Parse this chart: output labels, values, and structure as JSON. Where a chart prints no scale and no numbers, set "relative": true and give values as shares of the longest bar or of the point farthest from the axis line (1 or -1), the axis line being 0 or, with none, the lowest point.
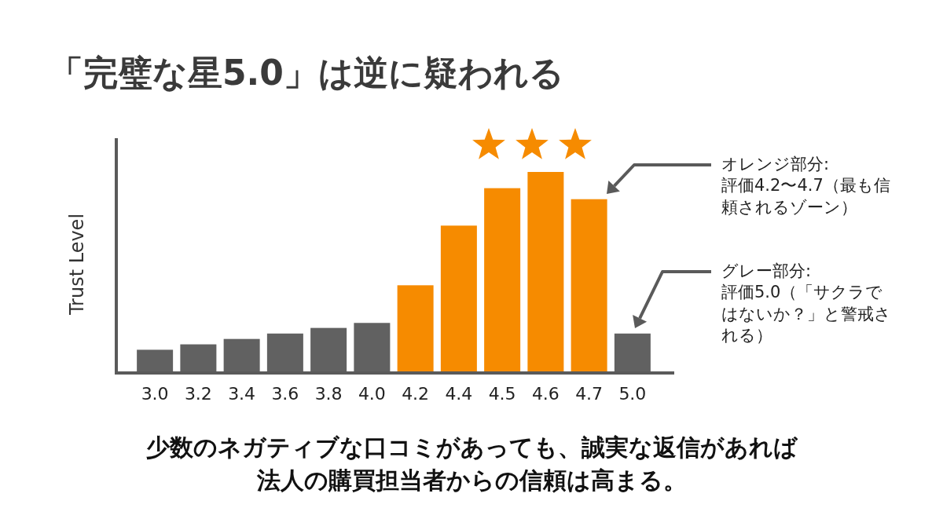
{
  "chart_data": {
    "type": "bar",
    "title": "「完璧な星5.0」は逆に疑われる",
    "ylabel": "Trust Level",
    "relative": true,
    "categories": [
      "3.0",
      "3.2",
      "3.4",
      "3.6",
      "3.8",
      "4.0",
      "4.2",
      "4.4",
      "4.5",
      "4.6",
      "4.7",
      "5.0"
    ],
    "values": [
      0.112,
      0.139,
      0.166,
      0.193,
      0.221,
      0.246,
      0.434,
      0.732,
      0.919,
      1,
      0.864,
      0.193
    ],
    "colors": [
      "#616161",
      "#616161",
      "#616161",
      "#616161",
      "#616161",
      "#616161",
      "#f68b00",
      "#f68b00",
      "#f68b00",
      "#f68b00",
      "#f68b00",
      "#616161"
    ],
    "annotations": [
      "オレンジ部分:\n評価4.2〜4.7（最も信頼されるゾーン）",
      "グレー部分:\n評価5.0（「サクラではないか？」と警戒される）",
      "少数のネガティブな口コミがあっても、誠実な返信があれば",
      "法人の購買担当者からの信頼は高まる。"
    ]
  }
}
